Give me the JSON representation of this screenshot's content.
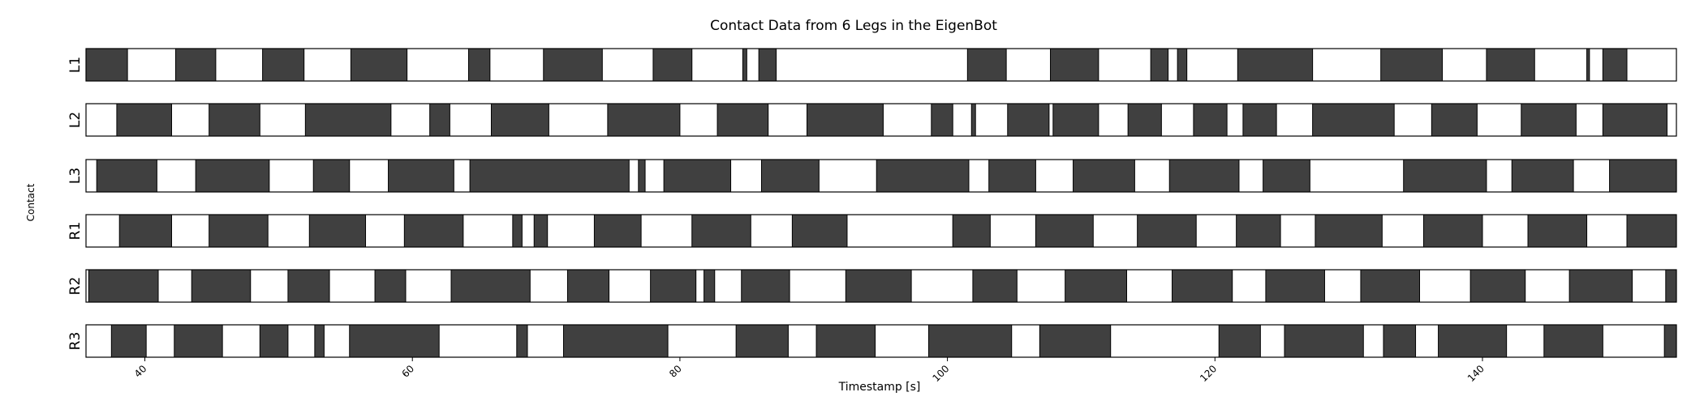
{
  "chart_data": {
    "type": "bar",
    "subtype": "gait-contact-timeline",
    "title": "Contact Data from 6 Legs in the EigenBot",
    "xlabel": "Timestamp [s]",
    "ylabel": "Contact",
    "xlim": [
      35.6,
      154.5
    ],
    "xticks": [
      40,
      60,
      80,
      100,
      120,
      140
    ],
    "contact_color": "#404040",
    "swing_color": "#ffffff",
    "grid": false,
    "legs": [
      {
        "name": "L1",
        "contact": [
          [
            35.6,
            38.7
          ],
          [
            42.3,
            45.3
          ],
          [
            48.8,
            51.9
          ],
          [
            55.4,
            59.6
          ],
          [
            64.2,
            65.8
          ],
          [
            69.8,
            74.2
          ],
          [
            78.0,
            80.9
          ],
          [
            84.7,
            85.0
          ],
          [
            85.9,
            87.2
          ],
          [
            101.5,
            104.4
          ],
          [
            107.7,
            111.3
          ],
          [
            115.2,
            116.5
          ],
          [
            117.2,
            117.9
          ],
          [
            121.7,
            127.3
          ],
          [
            132.4,
            137.0
          ],
          [
            140.3,
            143.9
          ],
          [
            147.8,
            148.0
          ],
          [
            149.0,
            150.8
          ]
        ]
      },
      {
        "name": "L2",
        "contact": [
          [
            37.9,
            42.0
          ],
          [
            44.8,
            48.6
          ],
          [
            52.0,
            58.4
          ],
          [
            61.3,
            62.8
          ],
          [
            65.9,
            70.2
          ],
          [
            74.6,
            80.0
          ],
          [
            82.8,
            86.6
          ],
          [
            89.5,
            95.2
          ],
          [
            98.8,
            100.4
          ],
          [
            101.8,
            102.1
          ],
          [
            104.5,
            107.6
          ],
          [
            107.9,
            111.3
          ],
          [
            113.5,
            116.0
          ],
          [
            118.4,
            120.9
          ],
          [
            122.1,
            124.6
          ],
          [
            127.3,
            133.4
          ],
          [
            136.2,
            139.6
          ],
          [
            142.9,
            147.0
          ],
          [
            149.0,
            153.8
          ]
        ]
      },
      {
        "name": "L3",
        "contact": [
          [
            36.4,
            40.9
          ],
          [
            43.8,
            49.3
          ],
          [
            52.6,
            55.3
          ],
          [
            58.2,
            63.1
          ],
          [
            64.3,
            76.2
          ],
          [
            76.9,
            77.4
          ],
          [
            78.8,
            83.8
          ],
          [
            86.1,
            90.4
          ],
          [
            94.7,
            101.6
          ],
          [
            103.1,
            106.6
          ],
          [
            109.4,
            114.0
          ],
          [
            116.6,
            121.8
          ],
          [
            123.6,
            127.1
          ],
          [
            134.1,
            140.3
          ],
          [
            142.2,
            146.8
          ],
          [
            149.5,
            155.4
          ]
        ]
      },
      {
        "name": "R1",
        "contact": [
          [
            38.1,
            42.0
          ],
          [
            44.8,
            49.2
          ],
          [
            52.3,
            56.5
          ],
          [
            59.4,
            63.8
          ],
          [
            67.5,
            68.2
          ],
          [
            69.1,
            70.1
          ],
          [
            73.6,
            77.1
          ],
          [
            80.9,
            85.3
          ],
          [
            88.4,
            92.5
          ],
          [
            100.4,
            103.2
          ],
          [
            106.6,
            110.9
          ],
          [
            114.2,
            118.6
          ],
          [
            121.6,
            124.9
          ],
          [
            127.5,
            132.5
          ],
          [
            135.6,
            140.0
          ],
          [
            143.4,
            147.8
          ],
          [
            150.8,
            154.8
          ]
        ]
      },
      {
        "name": "R2",
        "contact": [
          [
            35.8,
            41.0
          ],
          [
            43.5,
            47.9
          ],
          [
            50.7,
            53.8
          ],
          [
            57.2,
            59.5
          ],
          [
            62.9,
            68.8
          ],
          [
            71.6,
            74.7
          ],
          [
            77.8,
            81.2
          ],
          [
            81.8,
            82.6
          ],
          [
            84.6,
            88.2
          ],
          [
            92.4,
            97.3
          ],
          [
            101.9,
            105.2
          ],
          [
            108.8,
            113.4
          ],
          [
            116.8,
            121.3
          ],
          [
            123.8,
            128.2
          ],
          [
            130.9,
            135.3
          ],
          [
            139.1,
            143.2
          ],
          [
            146.5,
            151.2
          ],
          [
            153.7,
            154.9
          ]
        ]
      },
      {
        "name": "R3",
        "contact": [
          [
            37.5,
            40.1
          ],
          [
            42.2,
            45.8
          ],
          [
            48.6,
            50.7
          ],
          [
            52.7,
            53.4
          ],
          [
            55.3,
            62.0
          ],
          [
            67.8,
            68.6
          ],
          [
            71.3,
            79.1
          ],
          [
            84.2,
            88.1
          ],
          [
            90.2,
            94.6
          ],
          [
            98.6,
            104.8
          ],
          [
            106.9,
            112.2
          ],
          [
            120.3,
            123.4
          ],
          [
            125.2,
            131.1
          ],
          [
            132.6,
            135.0
          ],
          [
            136.7,
            141.8
          ],
          [
            144.6,
            149.0
          ],
          [
            153.6,
            154.7
          ]
        ]
      }
    ]
  }
}
